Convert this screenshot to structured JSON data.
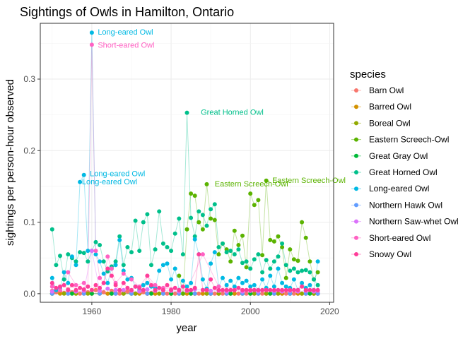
{
  "chart_data": {
    "type": "line",
    "title": "Sightings of Owls in Hamilton, Ontario",
    "xlabel": "year",
    "ylabel": "sightings per person-hour observed",
    "xlim": [
      1947,
      2021
    ],
    "ylim": [
      -0.012,
      0.378
    ],
    "xticks": [
      1960,
      1980,
      2000,
      2020
    ],
    "yticks": [
      0.0,
      0.1,
      0.2,
      0.3
    ],
    "ytick_labels": [
      "0.0",
      "0.1",
      "0.2",
      "0.3"
    ],
    "grid": true,
    "legend_position": "right",
    "legend_title": "species",
    "series": [
      {
        "name": "Barn Owl",
        "color": "#F8766D",
        "x": [
          1950,
          1951,
          1952,
          1953,
          1954,
          1955,
          1956,
          1957,
          1958,
          1959,
          1960,
          1961,
          1962,
          1963,
          1964,
          1965,
          1966,
          1967,
          1968,
          1969,
          1970,
          1971,
          1972,
          1973,
          1974,
          1975,
          1976,
          1977,
          1978,
          1979,
          1980,
          1981,
          1982,
          1983,
          1984,
          1985,
          1986,
          1987,
          1988,
          1989,
          1990,
          1991,
          1992,
          1993,
          1994,
          1995,
          1996,
          1997,
          1998,
          1999,
          2000,
          2001,
          2002,
          2003,
          2004,
          2005,
          2006,
          2007,
          2008,
          2009,
          2010,
          2011,
          2012,
          2013,
          2014,
          2015,
          2016,
          2017
        ],
        "y": [
          0.004,
          0.002,
          0.003,
          0.001,
          0.006,
          0.002,
          0.004,
          0.0,
          0.003,
          0.002,
          0.0,
          0.005,
          0.001,
          0.002,
          0.0,
          0.004,
          0.001,
          0.0,
          0.002,
          0.003,
          0.001,
          0.0,
          0.0,
          0.002,
          0.0,
          0.001,
          0.0,
          0.0,
          0.001,
          0.0,
          0.0,
          0.0,
          0.0,
          0.0,
          0.0,
          0.0,
          0.0,
          0.0,
          0.0,
          0.0,
          0.0,
          0.0,
          0.0,
          0.0,
          0.0,
          0.0,
          0.0,
          0.0,
          0.0,
          0.0,
          0.0,
          0.0,
          0.0,
          0.0,
          0.0,
          0.0,
          0.0,
          0.0,
          0.0,
          0.0,
          0.0,
          0.0,
          0.0,
          0.0,
          0.0,
          0.0,
          0.0,
          0.0
        ]
      },
      {
        "name": "Barred Owl",
        "color": "#D39200",
        "x": [
          1950,
          1952,
          1954,
          1956,
          1958,
          1960,
          1962,
          1964,
          1966,
          1968,
          1970,
          1972,
          1974,
          1976,
          1978,
          1980,
          1982,
          1984,
          1986,
          1988,
          1990,
          1992,
          1994,
          1996,
          1998,
          2000,
          2002,
          2004,
          2006,
          2008,
          2010,
          2012,
          2014,
          2016,
          2017
        ],
        "y": [
          0.0,
          0.0,
          0.0,
          0.0,
          0.0,
          0.0,
          0.0,
          0.0,
          0.0,
          0.0,
          0.0,
          0.0,
          0.0,
          0.0,
          0.0,
          0.0,
          0.0,
          0.0,
          0.0,
          0.0,
          0.0,
          0.0,
          0.0,
          0.0,
          0.0,
          0.0,
          0.0,
          0.0,
          0.0,
          0.0,
          0.0,
          0.0,
          0.0,
          0.0,
          0.0
        ]
      },
      {
        "name": "Boreal Owl",
        "color": "#93AA00",
        "x": [
          1950,
          1953,
          1956,
          1959,
          1962,
          1965,
          1968,
          1971,
          1974,
          1977,
          1980,
          1983,
          1986,
          1989,
          1992,
          1995,
          1998,
          2001,
          2004,
          2007,
          2010,
          2013,
          2016
        ],
        "y": [
          0.0,
          0.0,
          0.0,
          0.0,
          0.0,
          0.0,
          0.0,
          0.0,
          0.0,
          0.0,
          0.0,
          0.0,
          0.0,
          0.0,
          0.0,
          0.0,
          0.0,
          0.0,
          0.0,
          0.0,
          0.0,
          0.0,
          0.0
        ]
      },
      {
        "name": "Eastern Screech-Owl",
        "color": "#5BB300",
        "x": [
          1982,
          1983,
          1984,
          1985,
          1986,
          1987,
          1988,
          1989,
          1990,
          1991,
          1992,
          1993,
          1994,
          1995,
          1996,
          1997,
          1998,
          1999,
          2000,
          2001,
          2002,
          2003,
          2004,
          2005,
          2006,
          2007,
          2008,
          2009,
          2010,
          2011,
          2012,
          2013,
          2014,
          2015,
          2016,
          2017
        ],
        "y": [
          0.025,
          0.0,
          0.09,
          0.14,
          0.137,
          0.1,
          0.09,
          0.153,
          0.105,
          0.103,
          0.055,
          0.07,
          0.062,
          0.045,
          0.088,
          0.068,
          0.081,
          0.037,
          0.14,
          0.124,
          0.131,
          0.054,
          0.158,
          0.075,
          0.073,
          0.08,
          0.065,
          0.022,
          0.062,
          0.048,
          0.046,
          0.1,
          0.078,
          0.045,
          0.02,
          0.03
        ]
      },
      {
        "name": "Great Gray Owl",
        "color": "#00BA38",
        "x": [
          1950,
          1955,
          1960,
          1965,
          1970,
          1975,
          1980,
          1985,
          1990,
          1995,
          2000,
          2005,
          2010,
          2015,
          2017
        ],
        "y": [
          0.0,
          0.0,
          0.0,
          0.0,
          0.0,
          0.0,
          0.0,
          0.0,
          0.0,
          0.0,
          0.0,
          0.0,
          0.0,
          0.0,
          0.0
        ]
      },
      {
        "name": "Great Horned Owl",
        "color": "#00C08B",
        "x": [
          1950,
          1951,
          1952,
          1953,
          1954,
          1955,
          1956,
          1957,
          1958,
          1959,
          1960,
          1961,
          1962,
          1963,
          1964,
          1965,
          1966,
          1967,
          1968,
          1969,
          1970,
          1971,
          1972,
          1973,
          1974,
          1975,
          1976,
          1977,
          1978,
          1979,
          1980,
          1981,
          1982,
          1983,
          1984,
          1985,
          1986,
          1987,
          1988,
          1989,
          1990,
          1991,
          1992,
          1993,
          1994,
          1995,
          1996,
          1997,
          1998,
          1999,
          2000,
          2001,
          2002,
          2003,
          2004,
          2005,
          2006,
          2007,
          2008,
          2009,
          2010,
          2011,
          2012,
          2013,
          2014,
          2015,
          2016,
          2017
        ],
        "y": [
          0.09,
          0.04,
          0.053,
          0.02,
          0.055,
          0.05,
          0.045,
          0.058,
          0.057,
          0.045,
          0.06,
          0.072,
          0.068,
          0.045,
          0.031,
          0.038,
          0.045,
          0.08,
          0.04,
          0.065,
          0.058,
          0.102,
          0.06,
          0.1,
          0.111,
          0.04,
          0.062,
          0.115,
          0.07,
          0.065,
          0.06,
          0.084,
          0.105,
          0.055,
          0.253,
          0.106,
          0.08,
          0.115,
          0.11,
          0.095,
          0.118,
          0.125,
          0.065,
          0.07,
          0.058,
          0.06,
          0.055,
          0.062,
          0.043,
          0.045,
          0.035,
          0.048,
          0.055,
          0.03,
          0.047,
          0.035,
          0.045,
          0.052,
          0.07,
          0.04,
          0.032,
          0.035,
          0.03,
          0.032,
          0.033,
          0.03,
          0.02,
          0.012
        ]
      },
      {
        "name": "Long-eared Owl",
        "color": "#00B9E3",
        "x": [
          1950,
          1951,
          1952,
          1953,
          1954,
          1955,
          1956,
          1957,
          1958,
          1959,
          1960,
          1961,
          1962,
          1963,
          1964,
          1965,
          1966,
          1967,
          1968,
          1969,
          1970,
          1971,
          1972,
          1973,
          1974,
          1975,
          1976,
          1977,
          1978,
          1979,
          1980,
          1981,
          1982,
          1983,
          1984,
          1985,
          1986,
          1987,
          1988,
          1989,
          1990,
          1991,
          1992,
          1993,
          1994,
          1995,
          1996,
          1997,
          1998,
          1999,
          2000,
          2001,
          2002,
          2003,
          2004,
          2005,
          2006,
          2007,
          2008,
          2009,
          2010,
          2011,
          2012,
          2013,
          2014,
          2015,
          2016,
          2017
        ],
        "y": [
          0.022,
          0.005,
          0.008,
          0.03,
          0.015,
          0.052,
          0.04,
          0.156,
          0.166,
          0.06,
          0.365,
          0.055,
          0.045,
          0.028,
          0.015,
          0.035,
          0.04,
          0.075,
          0.032,
          0.02,
          0.022,
          0.01,
          0.005,
          0.012,
          0.015,
          0.01,
          0.008,
          0.032,
          0.04,
          0.042,
          0.02,
          0.035,
          0.005,
          0.018,
          0.01,
          0.015,
          0.076,
          0.055,
          0.02,
          0.007,
          0.042,
          0.058,
          0.01,
          0.022,
          0.012,
          0.018,
          0.01,
          0.022,
          0.015,
          0.018,
          0.01,
          0.012,
          0.005,
          0.02,
          0.008,
          0.025,
          0.01,
          0.035,
          0.015,
          0.01,
          0.008,
          0.02,
          0.005,
          0.015,
          0.008,
          0.012,
          0.005,
          0.045
        ]
      },
      {
        "name": "Northern Hawk Owl",
        "color": "#619CFF",
        "x": [
          1950,
          1954,
          1958,
          1962,
          1966,
          1970,
          1974,
          1978,
          1982,
          1986,
          1990,
          1994,
          1998,
          2002,
          2006,
          2010,
          2014,
          2017
        ],
        "y": [
          0.0,
          0.0,
          0.0,
          0.0,
          0.0,
          0.0,
          0.0,
          0.0,
          0.0,
          0.0,
          0.0,
          0.0,
          0.0,
          0.0,
          0.0,
          0.0,
          0.0,
          0.0
        ]
      },
      {
        "name": "Northern Saw-whet Owl",
        "color": "#DB72FB",
        "x": [
          1950,
          1952,
          1954,
          1956,
          1958,
          1960,
          1962,
          1964,
          1966,
          1968,
          1970,
          1972,
          1974,
          1976,
          1978,
          1980,
          1982,
          1984,
          1986,
          1988,
          1990,
          1992,
          1994,
          1996,
          1998,
          2000,
          2002,
          2004,
          2006,
          2008,
          2010,
          2012,
          2014,
          2016,
          2017
        ],
        "y": [
          0.003,
          0.005,
          0.005,
          0.003,
          0.004,
          0.06,
          0.004,
          0.007,
          0.005,
          0.005,
          0.004,
          0.003,
          0.006,
          0.004,
          0.005,
          0.004,
          0.003,
          0.004,
          0.006,
          0.005,
          0.004,
          0.004,
          0.003,
          0.005,
          0.003,
          0.004,
          0.003,
          0.005,
          0.004,
          0.003,
          0.004,
          0.003,
          0.004,
          0.003,
          0.004
        ]
      },
      {
        "name": "Short-eared Owl",
        "color": "#FF61C3",
        "x": [
          1950,
          1952,
          1954,
          1956,
          1958,
          1959,
          1960,
          1961,
          1962,
          1963,
          1964,
          1965,
          1966,
          1968,
          1970,
          1972,
          1974,
          1976,
          1978,
          1980,
          1984,
          1988,
          1992,
          2000
        ],
        "y": [
          0.01,
          0.005,
          0.03,
          0.012,
          0.015,
          0.01,
          0.348,
          0.06,
          0.022,
          0.015,
          0.052,
          0.035,
          0.015,
          0.028,
          0.02,
          0.01,
          0.025,
          0.012,
          0.008,
          0.006,
          0.005,
          0.055,
          0.01,
          0.005
        ]
      },
      {
        "name": "Snowy Owl",
        "color": "#FF3D99",
        "x": [
          1950,
          1951,
          1952,
          1953,
          1954,
          1955,
          1956,
          1957,
          1958,
          1959,
          1960,
          1961,
          1962,
          1963,
          1964,
          1965,
          1966,
          1967,
          1968,
          1969,
          1970,
          1971,
          1972,
          1973,
          1974,
          1975,
          1976,
          1977,
          1978,
          1979,
          1980,
          1981,
          1982,
          1983,
          1984,
          1985,
          1986,
          1987,
          1988,
          1989,
          1990,
          1991,
          1992,
          1993,
          1994,
          1995,
          1996,
          1997,
          1998,
          1999,
          2000,
          2001,
          2002,
          2003,
          2004,
          2005,
          2006,
          2007,
          2008,
          2009,
          2010,
          2011,
          2012,
          2013,
          2014,
          2015,
          2016,
          2017
        ],
        "y": [
          0.015,
          0.008,
          0.01,
          0.012,
          0.005,
          0.012,
          0.005,
          0.008,
          0.006,
          0.01,
          0.005,
          0.012,
          0.008,
          0.015,
          0.035,
          0.025,
          0.012,
          0.005,
          0.015,
          0.008,
          0.005,
          0.01,
          0.008,
          0.005,
          0.025,
          0.012,
          0.005,
          0.008,
          0.005,
          0.012,
          0.005,
          0.008,
          0.005,
          0.01,
          0.005,
          0.005,
          0.008,
          0.055,
          0.005,
          0.005,
          0.02,
          0.008,
          0.005,
          0.005,
          0.005,
          0.005,
          0.005,
          0.008,
          0.005,
          0.005,
          0.005,
          0.005,
          0.005,
          0.005,
          0.005,
          0.005,
          0.005,
          0.005,
          0.005,
          0.005,
          0.005,
          0.005,
          0.005,
          0.01,
          0.005,
          0.005,
          0.005,
          0.005
        ]
      }
    ],
    "annotations": [
      {
        "text": "Long-eared Owl",
        "x": 1961.5,
        "y": 0.366,
        "color": "#00B9E3"
      },
      {
        "text": "Short-eared Owl",
        "x": 1961.5,
        "y": 0.348,
        "color": "#FF61C3"
      },
      {
        "text": "Great Horned Owl",
        "x": 1987.5,
        "y": 0.254,
        "color": "#00C08B"
      },
      {
        "text": "Long-eared Owl",
        "x": 1959.5,
        "y": 0.168,
        "color": "#00B9E3"
      },
      {
        "text": "Long-eared Owl",
        "x": 1957.5,
        "y": 0.157,
        "color": "#00B9E3"
      },
      {
        "text": "Eastern Screech-Owl",
        "x": 1991,
        "y": 0.154,
        "color": "#5BB300"
      },
      {
        "text": "Eastern Screech-Owl",
        "x": 2005.5,
        "y": 0.159,
        "color": "#5BB300"
      }
    ]
  }
}
